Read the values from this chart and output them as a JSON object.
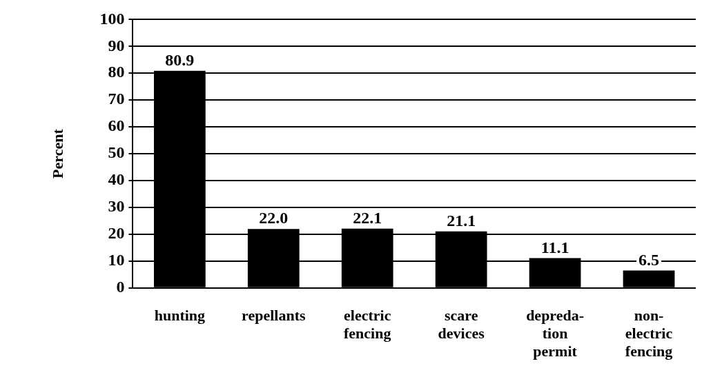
{
  "chart_data": {
    "type": "bar",
    "ylabel": "Percent",
    "categories": [
      "hunting",
      "repellants",
      "electric\nfencing",
      "scare\ndevices",
      "depreda-\ntion\npermit",
      "non-\nelectric\nfencing"
    ],
    "values": [
      80.9,
      22.0,
      22.1,
      21.1,
      11.1,
      6.5
    ],
    "value_labels": [
      "80.9",
      "22.0",
      "22.1",
      "21.1",
      "11.1",
      "6.5"
    ],
    "color": "#000000",
    "ylim": [
      0,
      100
    ],
    "yticks": [
      0,
      10,
      20,
      30,
      40,
      50,
      60,
      70,
      80,
      90,
      100
    ],
    "grid": "y"
  }
}
